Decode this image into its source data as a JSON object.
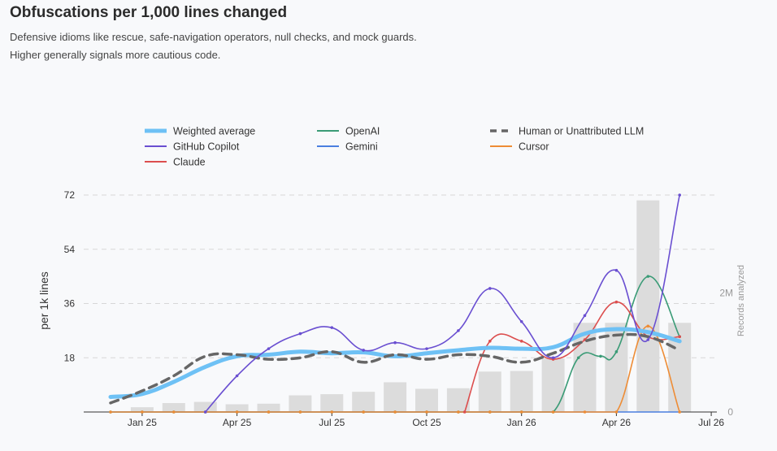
{
  "header": {
    "title": "Obfuscations per 1,000 lines changed",
    "subtitle_line1": "Defensive idioms like rescue, safe-navigation operators, null checks, and mock guards.",
    "subtitle_line2": "Higher generally signals more cautious code."
  },
  "chart_data": {
    "type": "line",
    "ylabel": "per 1k lines",
    "y2label": "Records analyzed",
    "ylim": [
      0,
      72
    ],
    "y_ticks": [
      18,
      36,
      54,
      72
    ],
    "y2_ticks": [
      {
        "label": "0",
        "value": 0
      },
      {
        "label": "2M",
        "value": 2000000
      }
    ],
    "y2lim": [
      0,
      3650000
    ],
    "x_ticks": [
      {
        "label": "Jan 25",
        "x": 1
      },
      {
        "label": "Apr 25",
        "x": 4
      },
      {
        "label": "Jul 25",
        "x": 7
      },
      {
        "label": "Oct 25",
        "x": 10
      },
      {
        "label": "Jan 26",
        "x": 13
      },
      {
        "label": "Apr 26",
        "x": 16
      },
      {
        "label": "Jul 26",
        "x": 19
      }
    ],
    "x_months": [
      "Dec 24",
      "Jan 25",
      "Feb 25",
      "Mar 25",
      "Apr 25",
      "May 25",
      "Jun 25",
      "Jul 25",
      "Aug 25",
      "Sep 25",
      "Oct 25",
      "Nov 25",
      "Dec 25",
      "Jan 26",
      "Feb 26",
      "Mar 26",
      "Apr 26",
      "May 26",
      "Jun 26",
      "Jul 26"
    ],
    "grid": true,
    "legend_position": "top",
    "bars": {
      "name": "Records analyzed",
      "color": "#dcdcdc",
      "x": [
        1,
        2,
        3,
        4,
        5,
        6,
        7,
        8,
        9,
        10,
        11,
        12,
        13,
        14,
        15,
        16,
        17,
        18
      ],
      "values": [
        80000,
        150000,
        170000,
        130000,
        140000,
        280000,
        300000,
        340000,
        500000,
        390000,
        400000,
        680000,
        690000,
        900000,
        1500000,
        1500000,
        3560000,
        1500000
      ]
    },
    "series": [
      {
        "name": "Weighted average",
        "color": "#6ec1f5",
        "style": "thick",
        "x": [
          0,
          1,
          2,
          3,
          4,
          5,
          6,
          7,
          8,
          9,
          10,
          11,
          12,
          13,
          14,
          15,
          16,
          17,
          18
        ],
        "values": [
          5,
          6,
          10,
          15,
          18.5,
          19,
          20,
          19.5,
          19.8,
          18.5,
          19.5,
          20.5,
          21.3,
          21,
          21.5,
          26,
          27.5,
          26.5,
          23.5
        ]
      },
      {
        "name": "OpenAI",
        "color": "#3a9b76",
        "style": "solid",
        "x": [
          0,
          1,
          2,
          3,
          4,
          5,
          6,
          7,
          8,
          9,
          10,
          11,
          12,
          13,
          14,
          14.8,
          15.5,
          16,
          17,
          18
        ],
        "values": [
          0,
          0,
          0,
          0,
          0,
          0,
          0,
          0,
          0,
          0,
          0,
          0,
          0,
          0,
          0,
          18,
          18.5,
          20,
          45,
          25
        ]
      },
      {
        "name": "Human or Unattributed LLM",
        "color": "#666666",
        "style": "dash",
        "x": [
          0,
          1,
          2,
          3,
          4,
          5,
          6,
          7,
          8,
          9,
          10,
          11,
          12,
          13,
          14,
          15,
          16,
          17,
          18
        ],
        "values": [
          3,
          7,
          12,
          18.5,
          19,
          17.5,
          18,
          20,
          16.5,
          19,
          17.5,
          19,
          18.5,
          16.5,
          19.5,
          23.5,
          25.5,
          25,
          20.5
        ]
      },
      {
        "name": "GitHub Copilot",
        "color": "#6a4fd1",
        "style": "solid",
        "x": [
          3,
          4,
          5,
          6,
          7,
          8,
          9,
          10,
          11,
          12,
          13,
          14,
          15,
          16,
          17,
          18
        ],
        "values": [
          0,
          12,
          21,
          26,
          28,
          20.5,
          23,
          21,
          27,
          41,
          30,
          18,
          32,
          47,
          24,
          72
        ]
      },
      {
        "name": "Gemini",
        "color": "#4a7fe0",
        "style": "solid",
        "x": [
          0,
          18
        ],
        "values": [
          0,
          0
        ]
      },
      {
        "name": "Cursor",
        "color": "#ee8c35",
        "style": "solid",
        "x": [
          0,
          1,
          2,
          3,
          4,
          5,
          6,
          7,
          8,
          9,
          10,
          11,
          12,
          13,
          14,
          15,
          16,
          17,
          18
        ],
        "values": [
          0,
          0,
          0,
          0,
          0,
          0,
          0,
          0,
          0,
          0,
          0,
          0,
          0,
          0,
          0,
          0,
          0,
          28.5,
          0
        ]
      },
      {
        "name": "Claude",
        "color": "#dc4e4e",
        "style": "solid",
        "x": [
          11.2,
          12,
          13,
          14,
          15,
          16,
          17,
          18
        ],
        "values": [
          0,
          23.5,
          23.5,
          17.5,
          24,
          36.5,
          25,
          25
        ]
      }
    ],
    "legend_order": [
      "Weighted average",
      "OpenAI",
      "Human or Unattributed LLM",
      "GitHub Copilot",
      "Gemini",
      "Cursor",
      "Claude"
    ]
  }
}
